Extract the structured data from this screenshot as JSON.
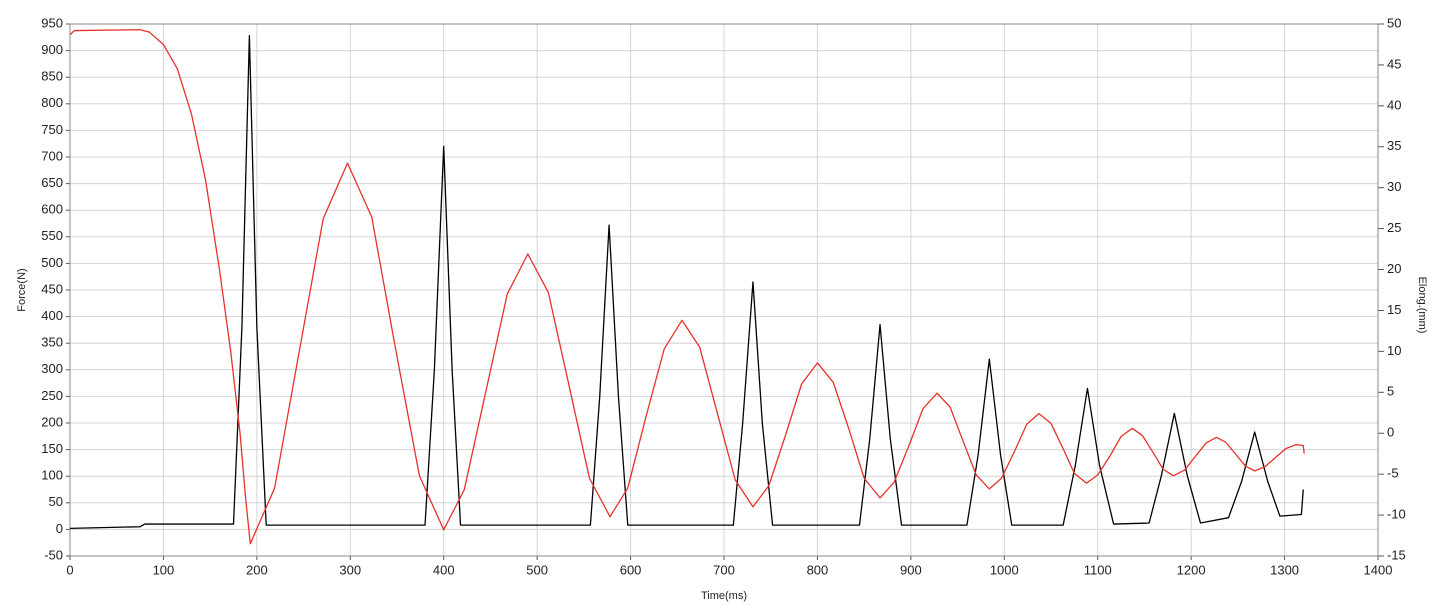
{
  "chart_data": {
    "type": "line",
    "x_label": "Time(ms)",
    "y_label": "Force(N)",
    "y2_label": "Elong.(mm)",
    "xlim": [
      0,
      1400
    ],
    "xticks": [
      0,
      100,
      200,
      300,
      400,
      500,
      600,
      700,
      800,
      900,
      1000,
      1100,
      1200,
      1300,
      1400
    ],
    "ylim": [
      -50,
      950
    ],
    "yticks": [
      -50,
      0,
      50,
      100,
      150,
      200,
      250,
      300,
      350,
      400,
      450,
      500,
      550,
      600,
      650,
      700,
      750,
      800,
      850,
      900,
      950
    ],
    "y2lim": [
      -15,
      50
    ],
    "y2ticks": [
      -15,
      -10,
      -5,
      0,
      5,
      10,
      15,
      20,
      25,
      30,
      35,
      40,
      45,
      50
    ],
    "grid": true,
    "series": [
      {
        "color": "#000000",
        "x": [
          0,
          75,
          80,
          175,
          184,
          192,
          200,
          210,
          380,
          390,
          400,
          409,
          418,
          557,
          567,
          577,
          587,
          597,
          710,
          720,
          731,
          741,
          752,
          845,
          856,
          867,
          878,
          890,
          960,
          972,
          984,
          996,
          1008,
          1063,
          1076,
          1089,
          1102,
          1117,
          1155,
          1168,
          1182,
          1196,
          1210,
          1240,
          1254,
          1268,
          1282,
          1295,
          1318,
          1320
        ],
        "values": [
          2,
          5,
          10,
          10,
          380,
          928,
          380,
          8,
          8,
          300,
          720,
          300,
          8,
          8,
          250,
          572,
          250,
          8,
          8,
          200,
          465,
          200,
          8,
          8,
          170,
          385,
          170,
          8,
          8,
          140,
          320,
          140,
          8,
          8,
          120,
          265,
          120,
          10,
          12,
          100,
          218,
          100,
          12,
          22,
          90,
          183,
          90,
          25,
          28,
          75
        ]
      },
      {
        "color": "#e8312a",
        "axis": "y2",
        "x": [
          0,
          5,
          75,
          85,
          100,
          115,
          130,
          145,
          160,
          172,
          182,
          188,
          193,
          219,
          245,
          271,
          297,
          323,
          348,
          374,
          400,
          422,
          445,
          468,
          490,
          512,
          534,
          556,
          578,
          597,
          616,
          636,
          655,
          674,
          693,
          712,
          731,
          748,
          766,
          783,
          800,
          817,
          834,
          850,
          867,
          882,
          898,
          913,
          928,
          942,
          956,
          970,
          984,
          997,
          1011,
          1024,
          1037,
          1050,
          1063,
          1075,
          1088,
          1100,
          1113,
          1125,
          1137,
          1148,
          1159,
          1170,
          1181,
          1193,
          1204,
          1216,
          1227,
          1237,
          1248,
          1258,
          1268,
          1279,
          1290,
          1301,
          1312,
          1320,
          1321
        ],
        "values": [
          48.7,
          49.2,
          49.3,
          49.0,
          47.5,
          44.5,
          39,
          31,
          20,
          10,
          0,
          -8,
          -13.5,
          -6.7,
          9.75,
          26.2,
          33,
          26.4,
          10.6,
          -5.2,
          -11.8,
          -6.9,
          5.05,
          17.0,
          21.9,
          17.2,
          5.9,
          -5.5,
          -10.2,
          -6.7,
          1.8,
          10.3,
          13.8,
          10.5,
          2.4,
          -5.7,
          -9.0,
          -6.4,
          -0.2,
          6.0,
          8.6,
          6.2,
          0.4,
          -5.5,
          -7.9,
          -6.0,
          -1.5,
          3.0,
          4.9,
          3.2,
          -1.0,
          -5.1,
          -6.8,
          -5.5,
          -2.2,
          1.1,
          2.4,
          1.2,
          -1.9,
          -4.9,
          -6.1,
          -5.1,
          -2.8,
          -0.4,
          0.6,
          -0.3,
          -2.3,
          -4.4,
          -5.2,
          -4.5,
          -2.9,
          -1.2,
          -0.5,
          -1.1,
          -2.6,
          -4.0,
          -4.6,
          -4.1,
          -3.0,
          -1.9,
          -1.4,
          -1.5,
          -2.5
        ]
      }
    ]
  }
}
